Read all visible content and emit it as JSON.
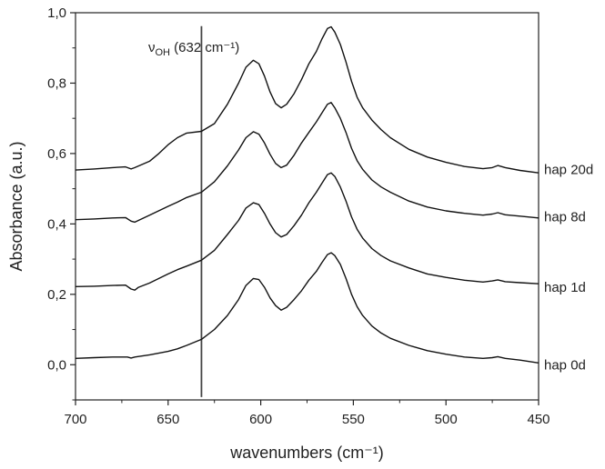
{
  "chart_data": {
    "type": "line",
    "title": "",
    "xlabel": "wavenumbers (cm⁻¹)",
    "ylabel": "Absorbance (a.u.)",
    "xlim": [
      700,
      450
    ],
    "ylim": [
      -0.1,
      1.0
    ],
    "x_reversed": true,
    "grid": false,
    "legend": "none",
    "x_ticks": [
      700,
      650,
      600,
      550,
      500,
      450
    ],
    "x_tick_labels": [
      "700",
      "650",
      "600",
      "550",
      "500",
      "450"
    ],
    "y_ticks": [
      0.0,
      0.2,
      0.4,
      0.6,
      0.8,
      1.0
    ],
    "y_tick_labels": [
      "0,0",
      "0,2",
      "0,4",
      "0,6",
      "0,8",
      "1,0"
    ],
    "annotation": {
      "x": 632,
      "label_main": "ν",
      "label_sub": "OH",
      "label_rest": " (632 cm⁻¹)"
    },
    "series": [
      {
        "name": "hap 0d",
        "points": [
          [
            700,
            0.018
          ],
          [
            690,
            0.02
          ],
          [
            680,
            0.022
          ],
          [
            672,
            0.022
          ],
          [
            670,
            0.019
          ],
          [
            668,
            0.022
          ],
          [
            660,
            0.028
          ],
          [
            650,
            0.038
          ],
          [
            645,
            0.045
          ],
          [
            640,
            0.055
          ],
          [
            632,
            0.072
          ],
          [
            625,
            0.1
          ],
          [
            618,
            0.14
          ],
          [
            612,
            0.185
          ],
          [
            608,
            0.225
          ],
          [
            604,
            0.245
          ],
          [
            601,
            0.242
          ],
          [
            598,
            0.22
          ],
          [
            595,
            0.19
          ],
          [
            592,
            0.168
          ],
          [
            589,
            0.155
          ],
          [
            586,
            0.163
          ],
          [
            582,
            0.185
          ],
          [
            578,
            0.21
          ],
          [
            574,
            0.24
          ],
          [
            570,
            0.265
          ],
          [
            567,
            0.29
          ],
          [
            564,
            0.313
          ],
          [
            562,
            0.318
          ],
          [
            560,
            0.31
          ],
          [
            557,
            0.285
          ],
          [
            554,
            0.245
          ],
          [
            551,
            0.2
          ],
          [
            548,
            0.165
          ],
          [
            545,
            0.14
          ],
          [
            540,
            0.11
          ],
          [
            535,
            0.09
          ],
          [
            530,
            0.075
          ],
          [
            520,
            0.055
          ],
          [
            510,
            0.04
          ],
          [
            500,
            0.03
          ],
          [
            490,
            0.022
          ],
          [
            480,
            0.018
          ],
          [
            475,
            0.02
          ],
          [
            472,
            0.023
          ],
          [
            468,
            0.018
          ],
          [
            460,
            0.013
          ],
          [
            450,
            0.005
          ]
        ]
      },
      {
        "name": "hap 1d",
        "points": [
          [
            700,
            0.222
          ],
          [
            690,
            0.223
          ],
          [
            680,
            0.225
          ],
          [
            673,
            0.226
          ],
          [
            670,
            0.215
          ],
          [
            668,
            0.212
          ],
          [
            666,
            0.22
          ],
          [
            660,
            0.232
          ],
          [
            650,
            0.258
          ],
          [
            645,
            0.27
          ],
          [
            640,
            0.28
          ],
          [
            632,
            0.297
          ],
          [
            625,
            0.325
          ],
          [
            618,
            0.37
          ],
          [
            612,
            0.41
          ],
          [
            608,
            0.445
          ],
          [
            604,
            0.46
          ],
          [
            601,
            0.455
          ],
          [
            598,
            0.43
          ],
          [
            595,
            0.4
          ],
          [
            592,
            0.375
          ],
          [
            589,
            0.363
          ],
          [
            586,
            0.37
          ],
          [
            582,
            0.395
          ],
          [
            578,
            0.425
          ],
          [
            574,
            0.46
          ],
          [
            570,
            0.49
          ],
          [
            567,
            0.515
          ],
          [
            564,
            0.54
          ],
          [
            562,
            0.545
          ],
          [
            560,
            0.535
          ],
          [
            557,
            0.505
          ],
          [
            554,
            0.465
          ],
          [
            551,
            0.42
          ],
          [
            548,
            0.385
          ],
          [
            545,
            0.36
          ],
          [
            540,
            0.33
          ],
          [
            535,
            0.31
          ],
          [
            530,
            0.295
          ],
          [
            520,
            0.275
          ],
          [
            510,
            0.258
          ],
          [
            500,
            0.248
          ],
          [
            490,
            0.24
          ],
          [
            480,
            0.235
          ],
          [
            475,
            0.238
          ],
          [
            472,
            0.241
          ],
          [
            468,
            0.236
          ],
          [
            460,
            0.233
          ],
          [
            450,
            0.23
          ]
        ]
      },
      {
        "name": "hap 8d",
        "points": [
          [
            700,
            0.412
          ],
          [
            690,
            0.414
          ],
          [
            680,
            0.417
          ],
          [
            673,
            0.418
          ],
          [
            670,
            0.408
          ],
          [
            668,
            0.405
          ],
          [
            666,
            0.41
          ],
          [
            660,
            0.425
          ],
          [
            650,
            0.45
          ],
          [
            645,
            0.462
          ],
          [
            640,
            0.475
          ],
          [
            632,
            0.49
          ],
          [
            625,
            0.52
          ],
          [
            618,
            0.565
          ],
          [
            612,
            0.61
          ],
          [
            608,
            0.645
          ],
          [
            604,
            0.662
          ],
          [
            601,
            0.655
          ],
          [
            598,
            0.63
          ],
          [
            595,
            0.598
          ],
          [
            592,
            0.572
          ],
          [
            589,
            0.56
          ],
          [
            586,
            0.567
          ],
          [
            582,
            0.595
          ],
          [
            578,
            0.63
          ],
          [
            574,
            0.66
          ],
          [
            570,
            0.69
          ],
          [
            567,
            0.715
          ],
          [
            564,
            0.74
          ],
          [
            562,
            0.745
          ],
          [
            560,
            0.73
          ],
          [
            557,
            0.7
          ],
          [
            554,
            0.66
          ],
          [
            551,
            0.615
          ],
          [
            548,
            0.58
          ],
          [
            545,
            0.555
          ],
          [
            540,
            0.525
          ],
          [
            535,
            0.505
          ],
          [
            530,
            0.49
          ],
          [
            520,
            0.465
          ],
          [
            510,
            0.448
          ],
          [
            500,
            0.437
          ],
          [
            490,
            0.43
          ],
          [
            480,
            0.425
          ],
          [
            475,
            0.428
          ],
          [
            472,
            0.432
          ],
          [
            468,
            0.426
          ],
          [
            460,
            0.422
          ],
          [
            450,
            0.417
          ]
        ]
      },
      {
        "name": "hap 20d",
        "points": [
          [
            700,
            0.553
          ],
          [
            690,
            0.556
          ],
          [
            680,
            0.56
          ],
          [
            673,
            0.562
          ],
          [
            670,
            0.556
          ],
          [
            668,
            0.56
          ],
          [
            660,
            0.578
          ],
          [
            655,
            0.6
          ],
          [
            650,
            0.625
          ],
          [
            645,
            0.645
          ],
          [
            640,
            0.658
          ],
          [
            632,
            0.663
          ],
          [
            625,
            0.685
          ],
          [
            618,
            0.74
          ],
          [
            612,
            0.8
          ],
          [
            608,
            0.845
          ],
          [
            604,
            0.865
          ],
          [
            601,
            0.855
          ],
          [
            598,
            0.82
          ],
          [
            595,
            0.775
          ],
          [
            592,
            0.742
          ],
          [
            589,
            0.73
          ],
          [
            586,
            0.74
          ],
          [
            582,
            0.77
          ],
          [
            578,
            0.81
          ],
          [
            574,
            0.855
          ],
          [
            570,
            0.89
          ],
          [
            567,
            0.925
          ],
          [
            564,
            0.955
          ],
          [
            562,
            0.96
          ],
          [
            560,
            0.945
          ],
          [
            557,
            0.91
          ],
          [
            554,
            0.86
          ],
          [
            551,
            0.805
          ],
          [
            548,
            0.76
          ],
          [
            545,
            0.73
          ],
          [
            540,
            0.695
          ],
          [
            535,
            0.668
          ],
          [
            530,
            0.645
          ],
          [
            520,
            0.612
          ],
          [
            510,
            0.59
          ],
          [
            500,
            0.575
          ],
          [
            490,
            0.563
          ],
          [
            480,
            0.557
          ],
          [
            475,
            0.56
          ],
          [
            472,
            0.566
          ],
          [
            468,
            0.56
          ],
          [
            460,
            0.552
          ],
          [
            450,
            0.545
          ]
        ]
      }
    ]
  }
}
